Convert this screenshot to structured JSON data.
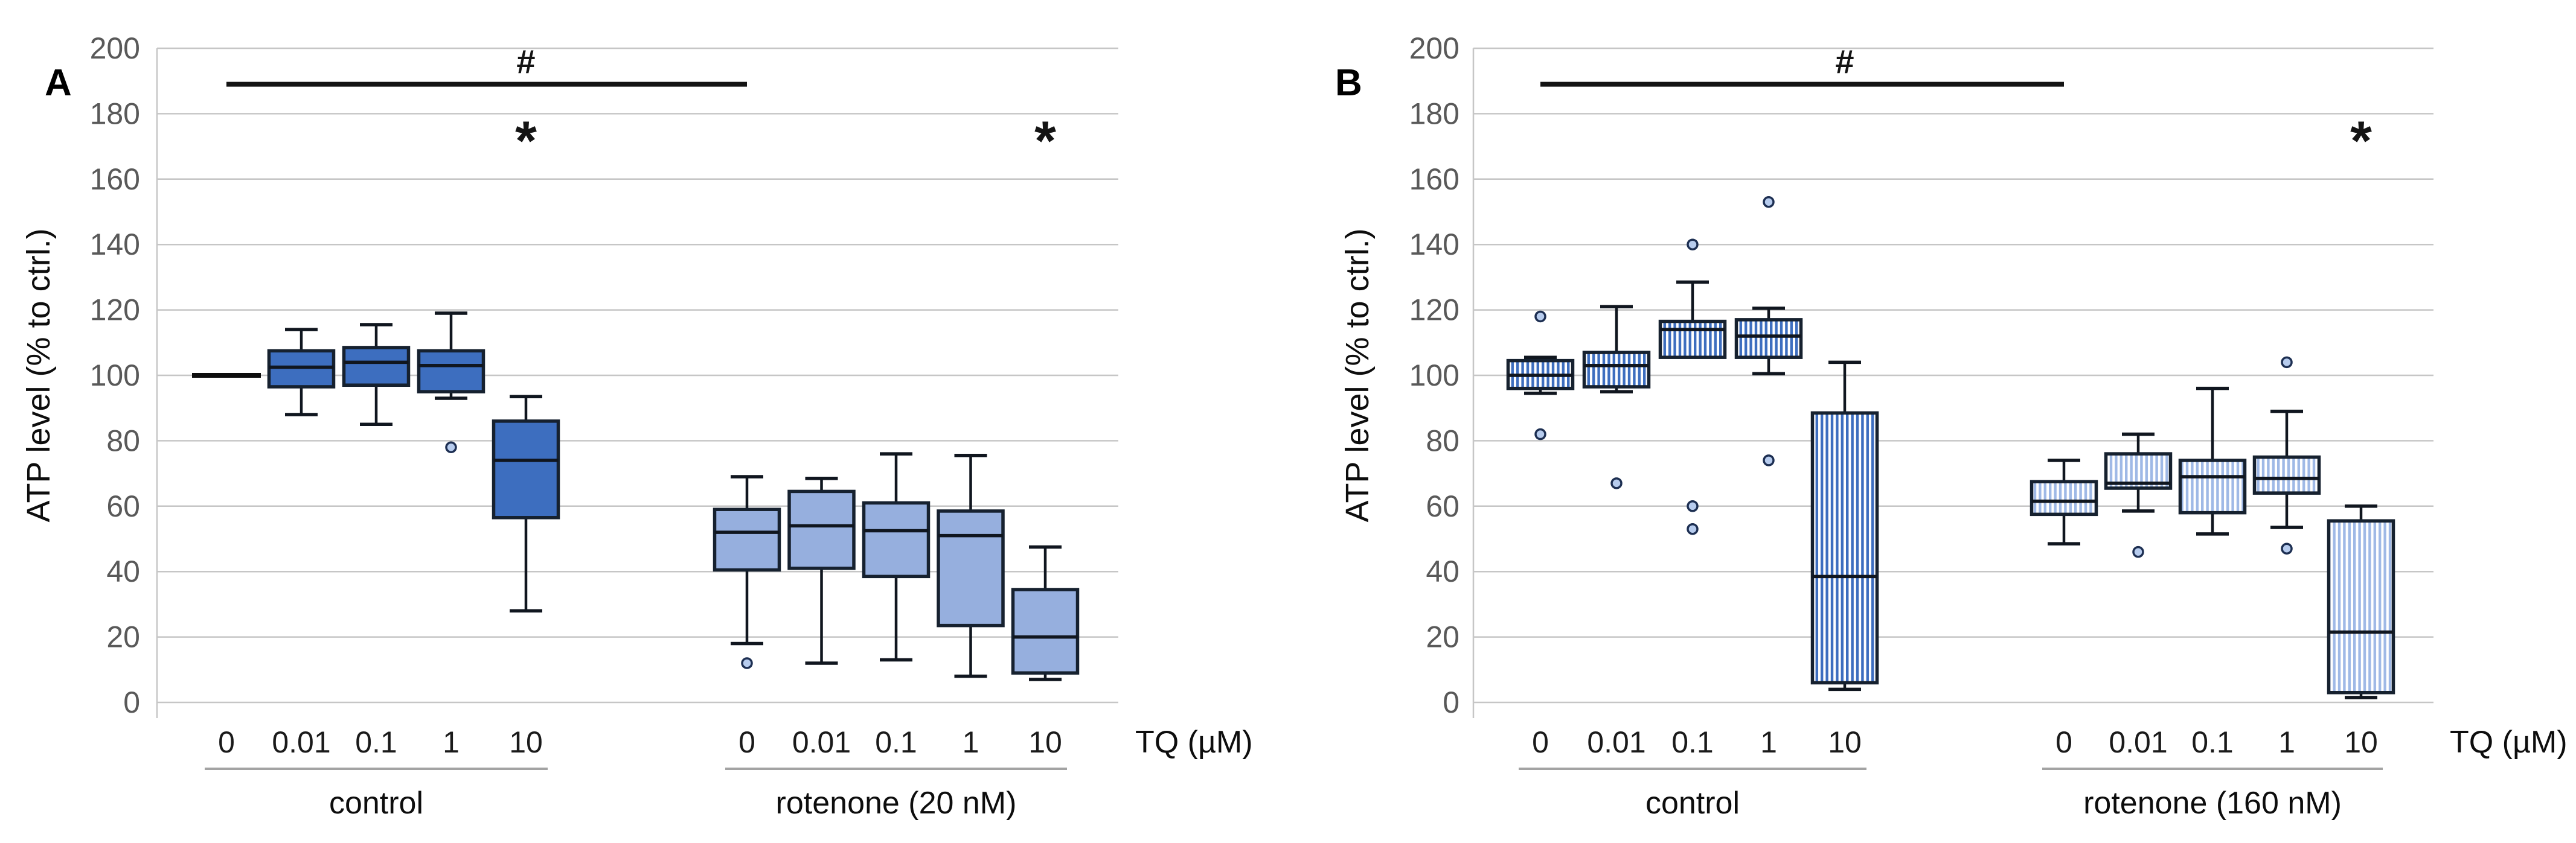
{
  "chart_data": [
    {
      "type": "box",
      "panel_label": "A",
      "title": "",
      "ylabel": "ATP level (% to ctrl.)",
      "ylim": [
        0,
        200
      ],
      "ytick_step": 20,
      "x_unit_label": "TQ (µM)",
      "grid": true,
      "groups": [
        {
          "label": "control",
          "fill_style": "solid",
          "color": "#3D6EBF",
          "boxes": [
            {
              "x": "0",
              "flat": 100,
              "outliers": []
            },
            {
              "x": "0.01",
              "low": 88,
              "q1": 96.5,
              "median": 102.5,
              "q3": 107.5,
              "high": 114,
              "outliers": []
            },
            {
              "x": "0.1",
              "low": 85,
              "q1": 97,
              "median": 104,
              "q3": 108.5,
              "high": 115.5,
              "outliers": []
            },
            {
              "x": "1",
              "low": 93,
              "q1": 95,
              "median": 103,
              "q3": 107.5,
              "high": 119,
              "outliers": [
                78
              ]
            },
            {
              "x": "10",
              "low": 28,
              "q1": 56.5,
              "median": 74,
              "q3": 86,
              "high": 93.5,
              "outliers": []
            }
          ]
        },
        {
          "label": "rotenone (20 nM)",
          "fill_style": "solid",
          "color": "#96AFDE",
          "boxes": [
            {
              "x": "0",
              "low": 18,
              "q1": 40.5,
              "median": 52,
              "q3": 59,
              "high": 69,
              "outliers": [
                12
              ]
            },
            {
              "x": "0.01",
              "low": 12,
              "q1": 41,
              "median": 54,
              "q3": 64.5,
              "high": 68.5,
              "outliers": []
            },
            {
              "x": "0.1",
              "low": 13,
              "q1": 38.5,
              "median": 52.5,
              "q3": 61,
              "high": 76,
              "outliers": []
            },
            {
              "x": "1",
              "low": 8,
              "q1": 23.5,
              "median": 51,
              "q3": 58.5,
              "high": 75.5,
              "outliers": []
            },
            {
              "x": "10",
              "low": 7,
              "q1": 9,
              "median": 20,
              "q3": 34.5,
              "high": 47.5,
              "outliers": []
            }
          ]
        }
      ],
      "annotations": {
        "bracket": {
          "label": "#",
          "from_group": 0,
          "from_box": 0,
          "to_group": 1,
          "to_box": 0,
          "y": 189,
          "label_over_group": 0,
          "label_over_box": 4,
          "label_y": 196
        },
        "stars": [
          {
            "label": "*",
            "group": 0,
            "box": 4,
            "y": 174
          },
          {
            "label": "*",
            "group": 1,
            "box": 4,
            "y": 174
          }
        ]
      }
    },
    {
      "type": "box",
      "panel_label": "B",
      "title": "",
      "ylabel": "ATP level (% to ctrl.)",
      "ylim": [
        0,
        200
      ],
      "ytick_step": 20,
      "x_unit_label": "TQ (µM)",
      "grid": true,
      "groups": [
        {
          "label": "control",
          "fill_style": "striped",
          "color": "#3D6EBF",
          "boxes": [
            {
              "x": "0",
              "low": 94.5,
              "q1": 96,
              "median": 100,
              "q3": 104.5,
              "high": 105.5,
              "outliers": [
                118,
                82
              ]
            },
            {
              "x": "0.01",
              "low": 95,
              "q1": 96.5,
              "median": 103,
              "q3": 107,
              "high": 121,
              "outliers": [
                67
              ]
            },
            {
              "x": "0.1",
              "low": 105.5,
              "q1": 105.5,
              "median": 114,
              "q3": 116.5,
              "high": 128.5,
              "outliers": [
                140,
                60,
                53
              ]
            },
            {
              "x": "1",
              "low": 100.5,
              "q1": 105.5,
              "median": 112,
              "q3": 117,
              "high": 120.5,
              "outliers": [
                153,
                74
              ]
            },
            {
              "x": "10",
              "low": 4,
              "q1": 6,
              "median": 38.5,
              "q3": 88.5,
              "high": 104,
              "outliers": []
            }
          ]
        },
        {
          "label": "rotenone (160 nM)",
          "fill_style": "striped",
          "color": "#9FB9E6",
          "boxes": [
            {
              "x": "0",
              "low": 48.5,
              "q1": 57.5,
              "median": 61.5,
              "q3": 67.5,
              "high": 74,
              "outliers": []
            },
            {
              "x": "0.01",
              "low": 58.5,
              "q1": 65.5,
              "median": 67,
              "q3": 76,
              "high": 82,
              "outliers": [
                46
              ]
            },
            {
              "x": "0.1",
              "low": 51.5,
              "q1": 58,
              "median": 69,
              "q3": 74,
              "high": 96,
              "outliers": []
            },
            {
              "x": "1",
              "low": 53.5,
              "q1": 64,
              "median": 68.5,
              "q3": 75,
              "high": 89,
              "outliers": [
                104,
                47
              ]
            },
            {
              "x": "10",
              "low": 1.5,
              "q1": 3,
              "median": 21.5,
              "q3": 55.5,
              "high": 60,
              "outliers": []
            }
          ]
        }
      ],
      "annotations": {
        "bracket": {
          "label": "#",
          "from_group": 0,
          "from_box": 0,
          "to_group": 1,
          "to_box": 0,
          "y": 189,
          "label_over_group": 0,
          "label_over_box": 4,
          "label_y": 196
        },
        "stars": [
          {
            "label": "*",
            "group": 1,
            "box": 4,
            "y": 174
          }
        ]
      }
    }
  ],
  "colors": {
    "box_border": "#16212f",
    "median_line": "#10161f",
    "gridline": "#c6c6c6",
    "y_tick_text": "#595959",
    "x_tick_text": "#1a1a1a",
    "group_underline": "#a3a3a3",
    "annotation": "#141414",
    "outlier_fill": "#b7ccee",
    "outlier_ring": "#1d2f52",
    "background": "#ffffff"
  }
}
